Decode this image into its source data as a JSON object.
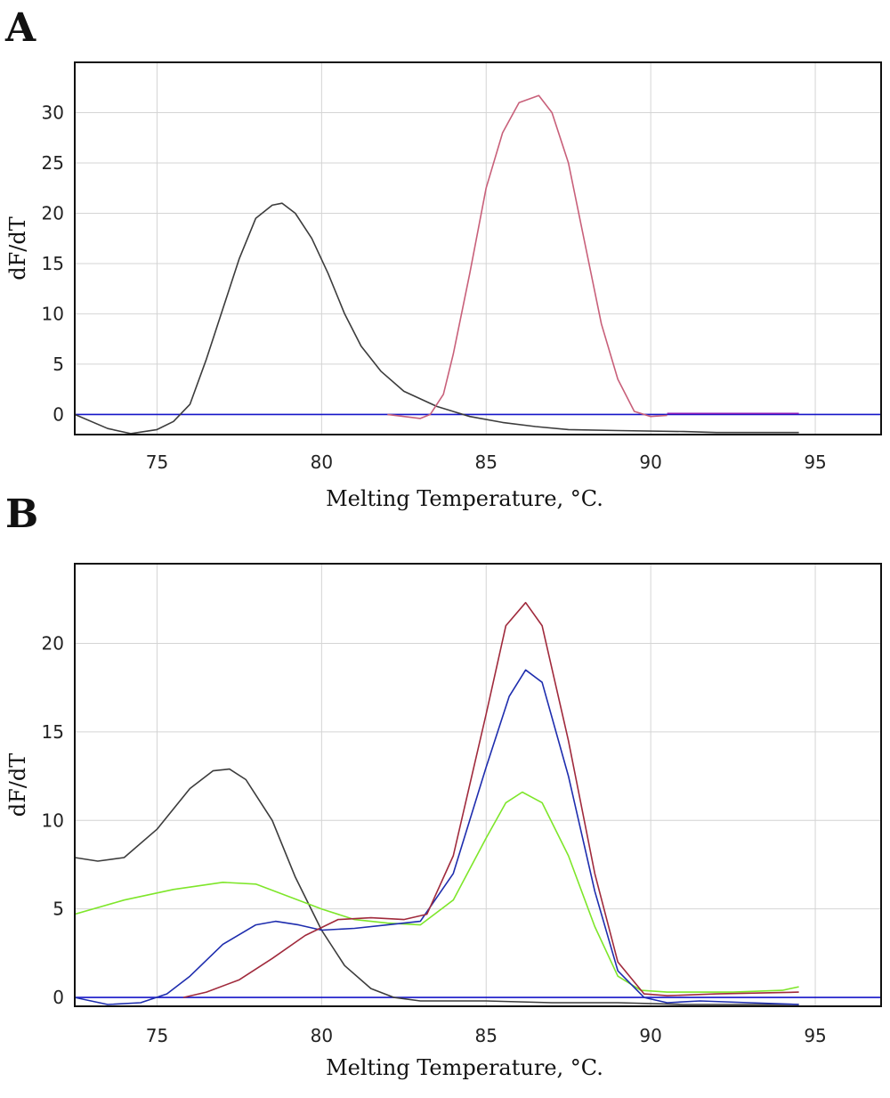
{
  "chart_data": [
    {
      "type": "line",
      "panel_label": "A",
      "xlabel": "Melting Temperature, °C.",
      "ylabel": "dF/dT",
      "xlim": [
        72.5,
        97
      ],
      "ylim": [
        -2,
        35
      ],
      "xticks": [
        75,
        80,
        85,
        90,
        95
      ],
      "yticks": [
        0,
        5,
        10,
        15,
        20,
        25,
        30
      ],
      "grid": true,
      "baseline": 0,
      "baseline_color": "#1515c8",
      "series": [
        {
          "color": "#3c3c3c",
          "x": [
            72.5,
            73.5,
            74.2,
            75.0,
            75.5,
            76.0,
            76.5,
            77.0,
            77.5,
            78.0,
            78.5,
            78.8,
            79.2,
            79.7,
            80.2,
            80.7,
            81.2,
            81.8,
            82.5,
            83.5,
            84.5,
            85.5,
            86.5,
            87.5,
            89.0,
            91.0,
            92.0,
            94.5
          ],
          "y": [
            0.0,
            -1.4,
            -1.9,
            -1.5,
            -0.7,
            1.0,
            5.5,
            10.5,
            15.5,
            19.5,
            20.8,
            21.0,
            20.0,
            17.5,
            14.0,
            10.0,
            6.8,
            4.3,
            2.3,
            0.8,
            -0.2,
            -0.8,
            -1.2,
            -1.5,
            -1.6,
            -1.7,
            -1.8,
            -1.8
          ]
        },
        {
          "color": "#c8607a",
          "x": [
            82.0,
            82.5,
            83.0,
            83.3,
            83.7,
            84.0,
            84.5,
            85.0,
            85.5,
            86.0,
            86.6,
            87.0,
            87.5,
            88.0,
            88.5,
            89.0,
            89.5,
            90.0,
            90.5
          ],
          "y": [
            0.0,
            -0.2,
            -0.4,
            0.0,
            2.0,
            6.0,
            14.0,
            22.5,
            28.0,
            31.0,
            31.7,
            30.0,
            25.0,
            17.0,
            9.0,
            3.5,
            0.3,
            -0.2,
            -0.1
          ]
        },
        {
          "color": "#8a1ab5",
          "x": [
            90.5,
            92.0,
            93.5,
            94.5
          ],
          "y": [
            0.1,
            0.1,
            0.1,
            0.1
          ]
        }
      ]
    },
    {
      "type": "line",
      "panel_label": "B",
      "xlabel": "Melting Temperature, °C.",
      "ylabel": "dF/dT",
      "xlim": [
        72.5,
        97
      ],
      "ylim": [
        -0.5,
        24.5
      ],
      "xticks": [
        75,
        80,
        85,
        90,
        95
      ],
      "yticks": [
        0,
        5,
        10,
        15,
        20
      ],
      "grid": true,
      "baseline": 0,
      "baseline_color": "#1515c8",
      "series": [
        {
          "color": "#3c3c3c",
          "x": [
            72.5,
            73.2,
            74.0,
            75.0,
            76.0,
            76.7,
            77.2,
            77.7,
            78.5,
            79.2,
            80.0,
            80.7,
            81.5,
            82.2,
            83.0,
            85.0,
            87.0,
            89.0,
            91.0,
            93.0,
            94.5
          ],
          "y": [
            7.9,
            7.7,
            7.9,
            9.5,
            11.8,
            12.8,
            12.9,
            12.3,
            10.0,
            6.8,
            3.8,
            1.8,
            0.5,
            0.0,
            -0.2,
            -0.2,
            -0.3,
            -0.3,
            -0.4,
            -0.4,
            -0.4
          ]
        },
        {
          "color": "#7ee62a",
          "x": [
            72.5,
            74.0,
            75.5,
            77.0,
            78.0,
            79.0,
            80.0,
            81.0,
            82.0,
            83.0,
            84.0,
            85.0,
            85.6,
            86.1,
            86.7,
            87.5,
            88.3,
            89.0,
            89.7,
            90.5,
            92.5,
            94.0,
            94.5
          ],
          "y": [
            4.7,
            5.5,
            6.1,
            6.5,
            6.4,
            5.7,
            5.0,
            4.4,
            4.2,
            4.1,
            5.5,
            9.0,
            11.0,
            11.6,
            11.0,
            8.0,
            4.0,
            1.2,
            0.4,
            0.3,
            0.3,
            0.4,
            0.6
          ]
        },
        {
          "color": "#1e2dae",
          "x": [
            72.5,
            73.5,
            74.5,
            75.3,
            76.0,
            77.0,
            78.0,
            78.6,
            79.3,
            80.0,
            81.0,
            82.0,
            83.0,
            84.0,
            85.0,
            85.7,
            86.2,
            86.7,
            87.5,
            88.3,
            89.0,
            89.8,
            90.5,
            91.5,
            93.0,
            94.5
          ],
          "y": [
            0.0,
            -0.4,
            -0.3,
            0.2,
            1.2,
            3.0,
            4.1,
            4.3,
            4.1,
            3.8,
            3.9,
            4.1,
            4.3,
            7.0,
            13.0,
            17.0,
            18.5,
            17.8,
            12.5,
            6.0,
            1.5,
            0.0,
            -0.3,
            -0.2,
            -0.3,
            -0.4
          ]
        },
        {
          "color": "#a02a3c",
          "x": [
            75.8,
            76.5,
            77.5,
            78.5,
            79.5,
            80.5,
            81.5,
            82.5,
            83.2,
            84.0,
            85.0,
            85.6,
            86.2,
            86.7,
            87.5,
            88.3,
            89.0,
            89.8,
            90.5,
            92.0,
            94.5
          ],
          "y": [
            0.0,
            0.3,
            1.0,
            2.2,
            3.5,
            4.4,
            4.5,
            4.4,
            4.7,
            8.0,
            16.0,
            21.0,
            22.3,
            21.0,
            14.5,
            7.0,
            2.0,
            0.2,
            0.1,
            0.2,
            0.3
          ]
        }
      ]
    }
  ]
}
